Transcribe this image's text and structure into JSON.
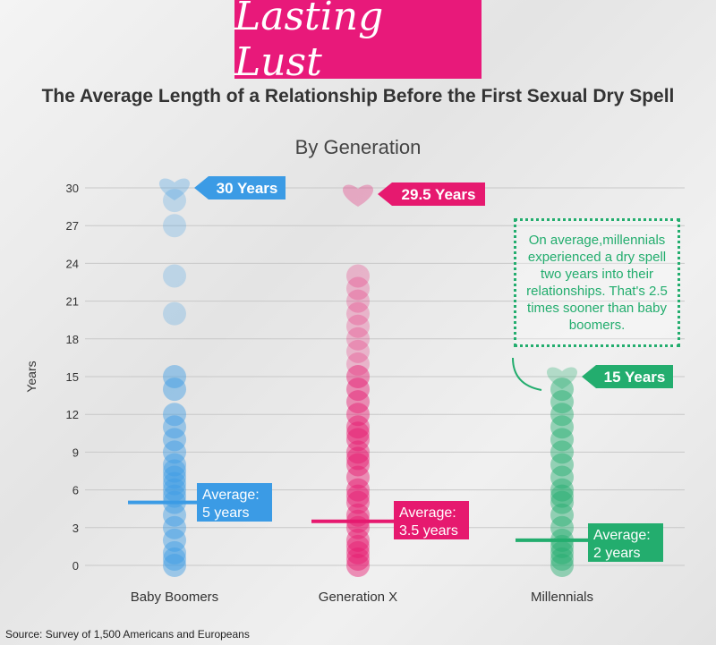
{
  "header": {
    "title": "Lasting Lust",
    "subtitle": "The Average Length of a Relationship Before the First Sexual Dry Spell"
  },
  "source": "Source: Survey of 1,500 Americans and Europeans",
  "note": "On average,millennials experienced a dry spell two years into their relationships. That's 2.5 times sooner than baby boomers.",
  "chart_data": {
    "type": "scatter",
    "title": "By Generation",
    "ylabel": "Years",
    "ylim": [
      0,
      30
    ],
    "yticks": [
      "0",
      "3",
      "6",
      "9",
      "12",
      "15",
      "18",
      "21",
      "24",
      "27",
      "30"
    ],
    "categories": [
      "Baby Boomers",
      "Generation X",
      "Millennials"
    ],
    "series": [
      {
        "name": "Baby Boomers",
        "color": "#3b9be5",
        "max": 30,
        "max_label": "30 Years",
        "average": 5,
        "avg_label1": "Average:",
        "avg_label2": "5 years",
        "values": [
          0,
          0.5,
          1,
          2,
          3,
          4,
          5,
          5.5,
          6,
          6.5,
          7,
          7.5,
          8,
          9,
          10,
          11,
          12,
          14,
          15,
          20,
          23,
          27,
          29
        ]
      },
      {
        "name": "Generation X",
        "color": "#e6196f",
        "max": 29.5,
        "max_label": "29.5 Years",
        "average": 3.5,
        "avg_label1": "Average:",
        "avg_label2": "3.5 years",
        "values": [
          0,
          0.5,
          1,
          1.5,
          2,
          3,
          3.5,
          4,
          5,
          5.5,
          6,
          7,
          8,
          8.5,
          9,
          10,
          10.5,
          11,
          12,
          13,
          14,
          15,
          16,
          17,
          18,
          19,
          20,
          21,
          22,
          23
        ]
      },
      {
        "name": "Millennials",
        "color": "#23ad6e",
        "max": 15,
        "max_label": "15 Years",
        "average": 2,
        "avg_label1": "Average:",
        "avg_label2": "2 years",
        "values": [
          0,
          0.5,
          1,
          1.5,
          2,
          3,
          4,
          5,
          5.5,
          6,
          7,
          8,
          9,
          10,
          11,
          12,
          13,
          14
        ]
      }
    ]
  }
}
